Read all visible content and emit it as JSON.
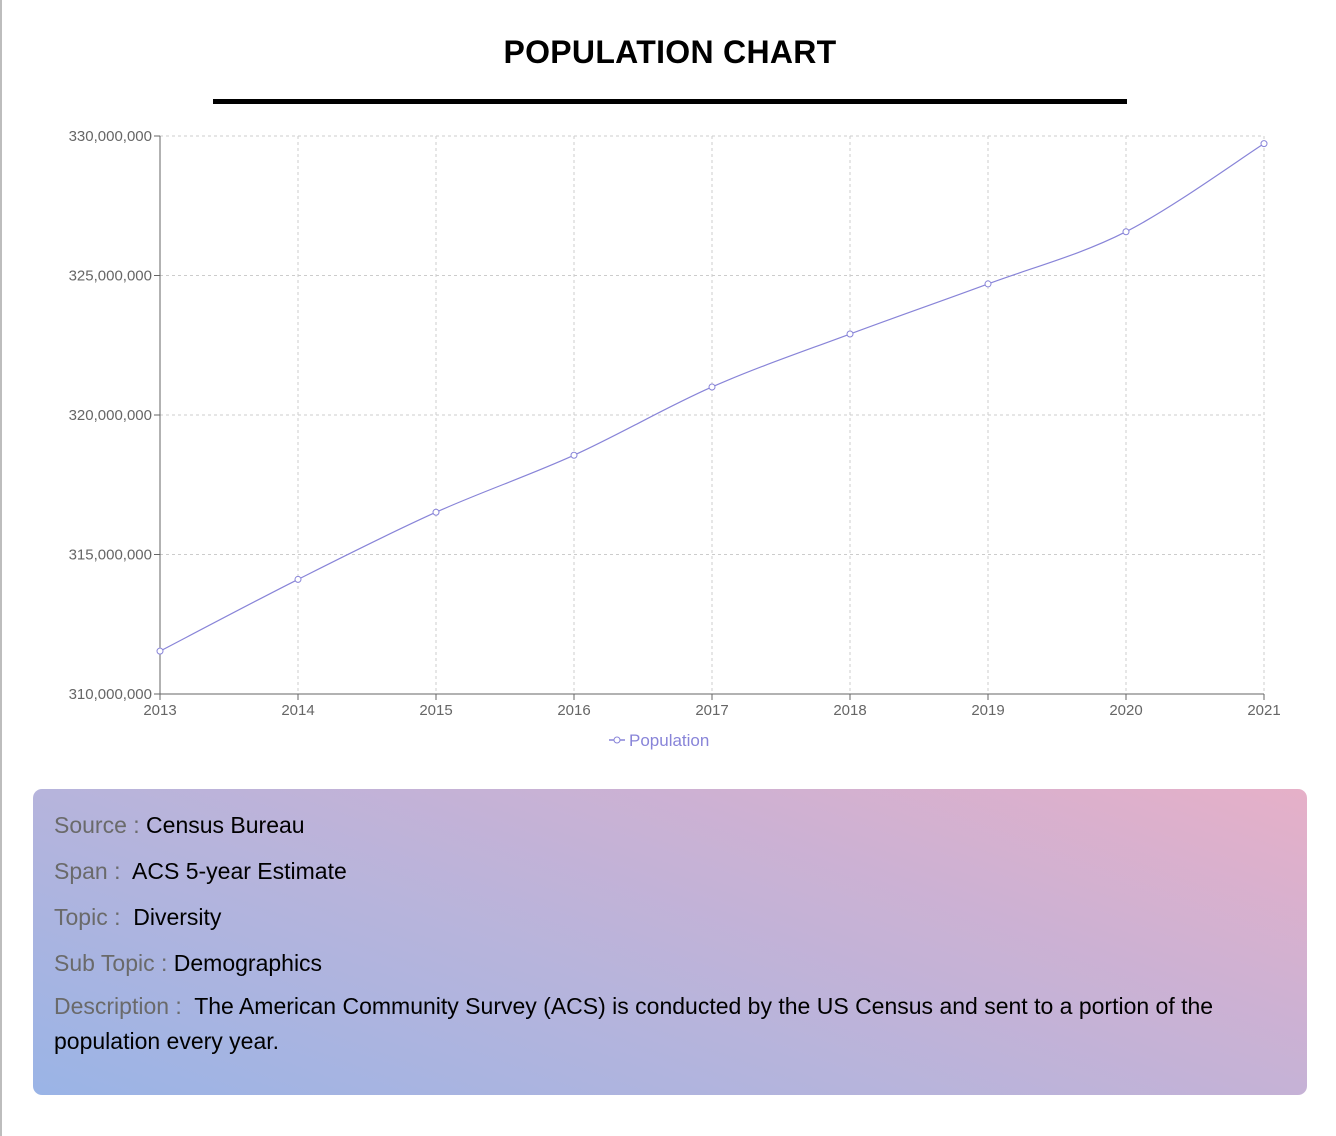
{
  "header": {
    "title": "POPULATION CHART"
  },
  "chart_data": {
    "type": "line",
    "categories": [
      "2013",
      "2014",
      "2015",
      "2016",
      "2017",
      "2018",
      "2019",
      "2020",
      "2021"
    ],
    "series": [
      {
        "name": "Population",
        "values": [
          311536594,
          314107084,
          316515021,
          318558162,
          321004407,
          322903030,
          324697795,
          326569308,
          329725481
        ]
      }
    ],
    "yticks": [
      "310,000,000",
      "315,000,000",
      "320,000,000",
      "325,000,000",
      "330,000,000"
    ],
    "ytick_values": [
      310000000,
      315000000,
      320000000,
      325000000,
      330000000
    ],
    "ylim": [
      310000000,
      330000000
    ],
    "grid": true,
    "legend_position": "bottom-center",
    "line_color": "#8884d8"
  },
  "info": {
    "source_label": "Source :",
    "source_value": "Census Bureau",
    "span_label": "Span :",
    "span_value": "ACS 5-year Estimate",
    "topic_label": "Topic :",
    "topic_value": "Diversity",
    "subtopic_label": "Sub Topic :",
    "subtopic_value": "Demographics",
    "description_label": "Description :",
    "description_value": "The American Community Survey (ACS) is conducted by the US Census and sent to a portion of the population every year."
  }
}
